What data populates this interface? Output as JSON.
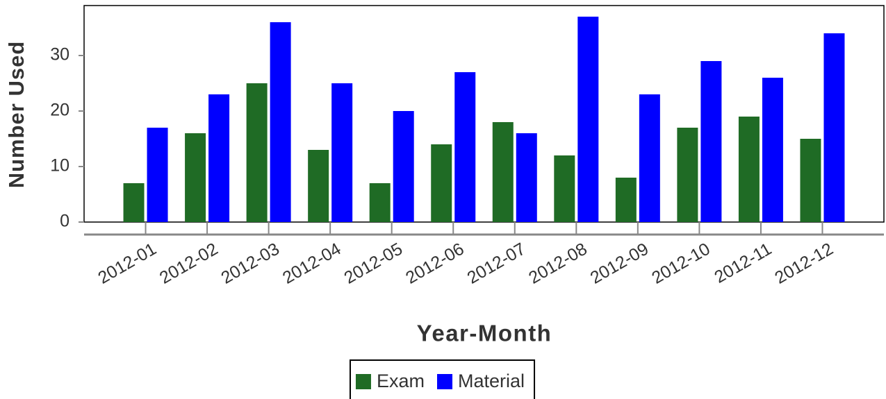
{
  "chart_data": {
    "type": "bar",
    "x_label": "Year-Month",
    "y_label": "Number Used",
    "categories": [
      "2012-01",
      "2012-02",
      "2012-03",
      "2012-04",
      "2012-05",
      "2012-06",
      "2012-07",
      "2012-08",
      "2012-09",
      "2012-10",
      "2012-11",
      "2012-12"
    ],
    "series": [
      {
        "name": "Exam",
        "color": "#1f6b25",
        "values": [
          7,
          16,
          25,
          13,
          7,
          14,
          18,
          12,
          8,
          17,
          19,
          15
        ]
      },
      {
        "name": "Material",
        "color": "#0000ff",
        "values": [
          17,
          23,
          36,
          25,
          20,
          27,
          16,
          37,
          23,
          29,
          26,
          34
        ]
      }
    ],
    "ylim": [
      0,
      39
    ],
    "yticks": [
      0,
      10,
      20,
      30
    ],
    "grid": false,
    "legend": "bottom"
  }
}
